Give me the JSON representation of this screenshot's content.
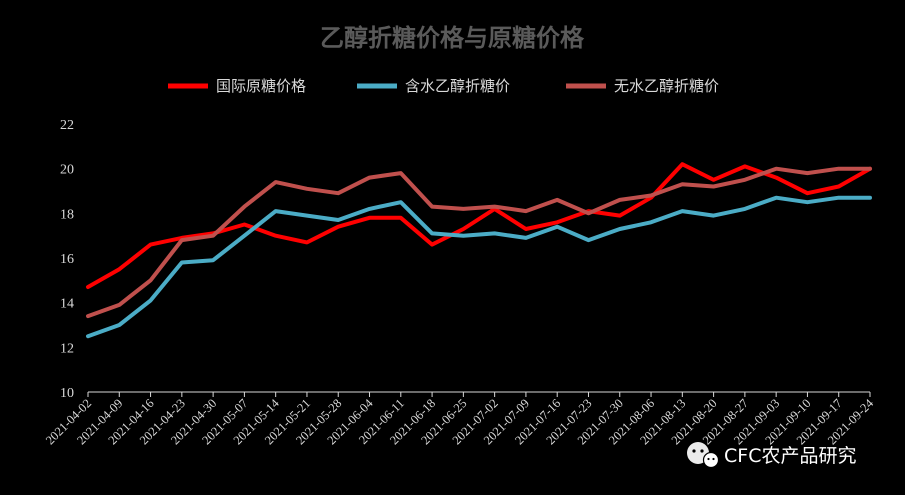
{
  "chart_data": {
    "type": "line",
    "title": "乙醇折糖价格与原糖价格",
    "xlabel": "",
    "ylabel": "",
    "ylim": [
      10,
      22
    ],
    "yticks": [
      10,
      12,
      14,
      16,
      18,
      20,
      22
    ],
    "grid": false,
    "legend_position": "top",
    "x": [
      "2021-04-02",
      "2021-04-09",
      "2021-04-16",
      "2021-04-23",
      "2021-04-30",
      "2021-05-07",
      "2021-05-14",
      "2021-05-21",
      "2021-05-28",
      "2021-06-04",
      "2021-06-11",
      "2021-06-18",
      "2021-06-25",
      "2021-07-02",
      "2021-07-09",
      "2021-07-16",
      "2021-07-23",
      "2021-07-30",
      "2021-08-06",
      "2021-08-13",
      "2021-08-20",
      "2021-08-27",
      "2021-09-03",
      "2021-09-10",
      "2021-09-17",
      "2021-09-24"
    ],
    "series": [
      {
        "name": "国际原糖价格",
        "color": "#ff0000",
        "values": [
          14.7,
          15.5,
          16.6,
          16.9,
          17.1,
          17.5,
          17.0,
          16.7,
          17.4,
          17.8,
          17.8,
          16.6,
          17.3,
          18.2,
          17.3,
          17.6,
          18.1,
          17.9,
          18.7,
          20.2,
          19.5,
          20.1,
          19.6,
          18.9,
          19.2,
          20.0
        ]
      },
      {
        "name": "含水乙醇折糖价",
        "color": "#4bacc6",
        "values": [
          12.5,
          13.0,
          14.1,
          15.8,
          15.9,
          17.0,
          18.1,
          17.9,
          17.7,
          18.2,
          18.5,
          17.1,
          17.0,
          17.1,
          16.9,
          17.4,
          16.8,
          17.3,
          17.6,
          18.1,
          17.9,
          18.2,
          18.7,
          18.5,
          18.7,
          18.7
        ]
      },
      {
        "name": "无水乙醇折糖价",
        "color": "#c0504d",
        "values": [
          13.4,
          13.9,
          15.0,
          16.8,
          17.0,
          18.3,
          19.4,
          19.1,
          18.9,
          19.6,
          19.8,
          18.3,
          18.2,
          18.3,
          18.1,
          18.6,
          18.0,
          18.6,
          18.8,
          19.3,
          19.2,
          19.5,
          20.0,
          19.8,
          20.0,
          20.0
        ]
      }
    ]
  },
  "watermark": {
    "text": "CFC农产品研究",
    "icon": "wechat-icon"
  }
}
